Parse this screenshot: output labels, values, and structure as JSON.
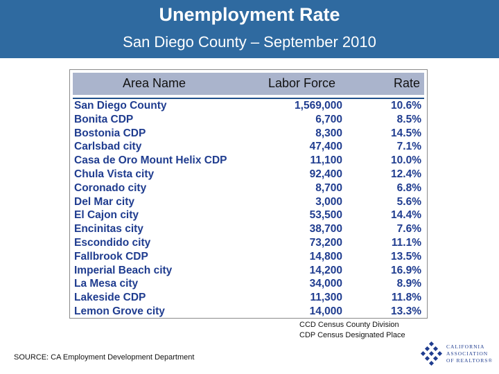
{
  "header": {
    "title": "Unemployment Rate",
    "subtitle": "San Diego County – September 2010"
  },
  "table": {
    "columns": [
      "Area Name",
      "Labor Force",
      "Rate"
    ],
    "rows": [
      {
        "area": "San Diego County",
        "labor_force": "1,569,000",
        "rate": "10.6%"
      },
      {
        "area": "Bonita CDP",
        "labor_force": "6,700",
        "rate": "8.5%"
      },
      {
        "area": "Bostonia CDP",
        "labor_force": "8,300",
        "rate": "14.5%"
      },
      {
        "area": "Carlsbad city",
        "labor_force": "47,400",
        "rate": "7.1%"
      },
      {
        "area": "Casa de Oro Mount Helix CDP",
        "labor_force": "11,100",
        "rate": "10.0%"
      },
      {
        "area": "Chula Vista city",
        "labor_force": "92,400",
        "rate": "12.4%"
      },
      {
        "area": "Coronado city",
        "labor_force": "8,700",
        "rate": "6.8%"
      },
      {
        "area": "Del Mar city",
        "labor_force": "3,000",
        "rate": "5.6%"
      },
      {
        "area": "El Cajon city",
        "labor_force": "53,500",
        "rate": "14.4%"
      },
      {
        "area": "Encinitas city",
        "labor_force": "38,700",
        "rate": "7.6%"
      },
      {
        "area": "Escondido city",
        "labor_force": "73,200",
        "rate": "11.1%"
      },
      {
        "area": "Fallbrook CDP",
        "labor_force": "14,800",
        "rate": "13.5%"
      },
      {
        "area": "Imperial Beach city",
        "labor_force": "14,200",
        "rate": "16.9%"
      },
      {
        "area": "La Mesa city",
        "labor_force": "34,000",
        "rate": "8.9%"
      },
      {
        "area": "Lakeside CDP",
        "labor_force": "11,300",
        "rate": "11.8%"
      },
      {
        "area": "Lemon Grove city",
        "labor_force": "14,000",
        "rate": "13.3%"
      }
    ]
  },
  "notes": [
    "CCD Census County Division",
    "CDP Census Designated Place"
  ],
  "source": "SOURCE: CA Employment Development Department",
  "logo": {
    "line1": "CALIFORNIA",
    "line2": "ASSOCIATION",
    "line3": "OF REALTORS®",
    "icon": "car-diamond-logo-icon"
  },
  "colors": {
    "header_bg": "#2f6aa0",
    "table_head_bg": "#aab4cc",
    "row_text": "#1f3c8f"
  }
}
